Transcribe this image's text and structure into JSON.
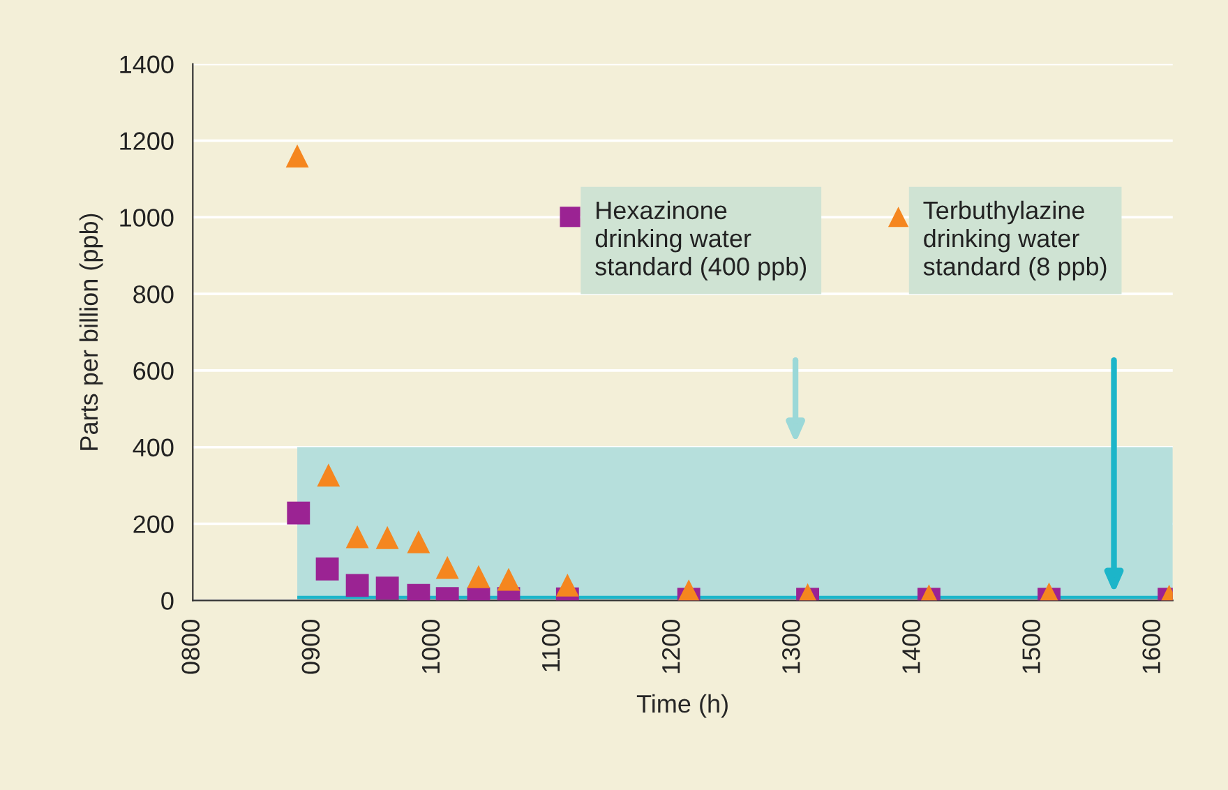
{
  "chart_data": {
    "type": "scatter",
    "xlabel": "Time (h)",
    "ylabel": "Parts per billion (ppb)",
    "xlim": [
      800,
      1616
    ],
    "ylim": [
      0,
      1400
    ],
    "xticks": [
      {
        "value": 800,
        "label": "0800"
      },
      {
        "value": 900,
        "label": "0900"
      },
      {
        "value": 1000,
        "label": "1000"
      },
      {
        "value": 1100,
        "label": "1100"
      },
      {
        "value": 1200,
        "label": "1200"
      },
      {
        "value": 1300,
        "label": "1300"
      },
      {
        "value": 1400,
        "label": "1400"
      },
      {
        "value": 1500,
        "label": "1500"
      },
      {
        "value": 1600,
        "label": "1600"
      }
    ],
    "yticks": [
      0,
      200,
      400,
      600,
      800,
      1000,
      1200,
      1400
    ],
    "grid": "y",
    "series": [
      {
        "color": "#9b2393",
        "marker": "square",
        "x": [
          888,
          912,
          937,
          962,
          988,
          1012,
          1038,
          1063,
          1112,
          1213,
          1312,
          1413,
          1513,
          1613
        ],
        "values": [
          228,
          82,
          39,
          32,
          13,
          5,
          4,
          5,
          4,
          3,
          3,
          3,
          3,
          3
        ]
      },
      {
        "color": "#f5861f",
        "marker": "triangle",
        "x": [
          887,
          913,
          937,
          962,
          988,
          1012,
          1038,
          1063,
          1112,
          1213,
          1312,
          1413,
          1513,
          1613
        ],
        "values": [
          1160,
          327,
          166,
          164,
          153,
          86,
          62,
          55,
          40,
          25,
          15,
          12,
          17,
          11
        ]
      }
    ],
    "bands": [
      {
        "axis": "y",
        "from": 0,
        "to": 400,
        "color": "#b6dfdc"
      }
    ],
    "ref_lines": [
      {
        "axis": "y",
        "value": 8,
        "color": "#1cb5c9",
        "line_style": "solid"
      }
    ],
    "annotations": [
      "Hexazinone\ndrinking water\nstandard (400 ppb)",
      "Terbuthylazine\ndrinking water\nstandard (8 ppb)"
    ]
  }
}
